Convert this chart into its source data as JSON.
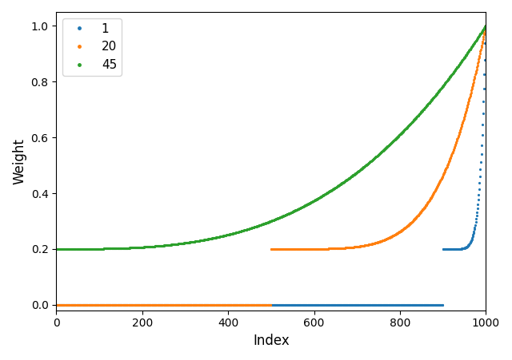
{
  "title": "",
  "xlabel": "Index",
  "ylabel": "Weight",
  "xlim": [
    0,
    1000
  ],
  "ylim": [
    -0.02,
    1.05
  ],
  "series": [
    {
      "label": "1",
      "color": "#1f77b4",
      "n_total": 1000,
      "n_selected": 100,
      "min_weight": 0.2,
      "exponent": 8.0
    },
    {
      "label": "20",
      "color": "#ff7f0e",
      "n_total": 1000,
      "n_selected": 500,
      "min_weight": 0.2,
      "exponent": 5.0
    },
    {
      "label": "45",
      "color": "#2ca02c",
      "n_total": 1000,
      "n_selected": 1000,
      "min_weight": 0.2,
      "exponent": 3.0
    }
  ],
  "legend_loc": "upper left",
  "markersize": 2.5
}
